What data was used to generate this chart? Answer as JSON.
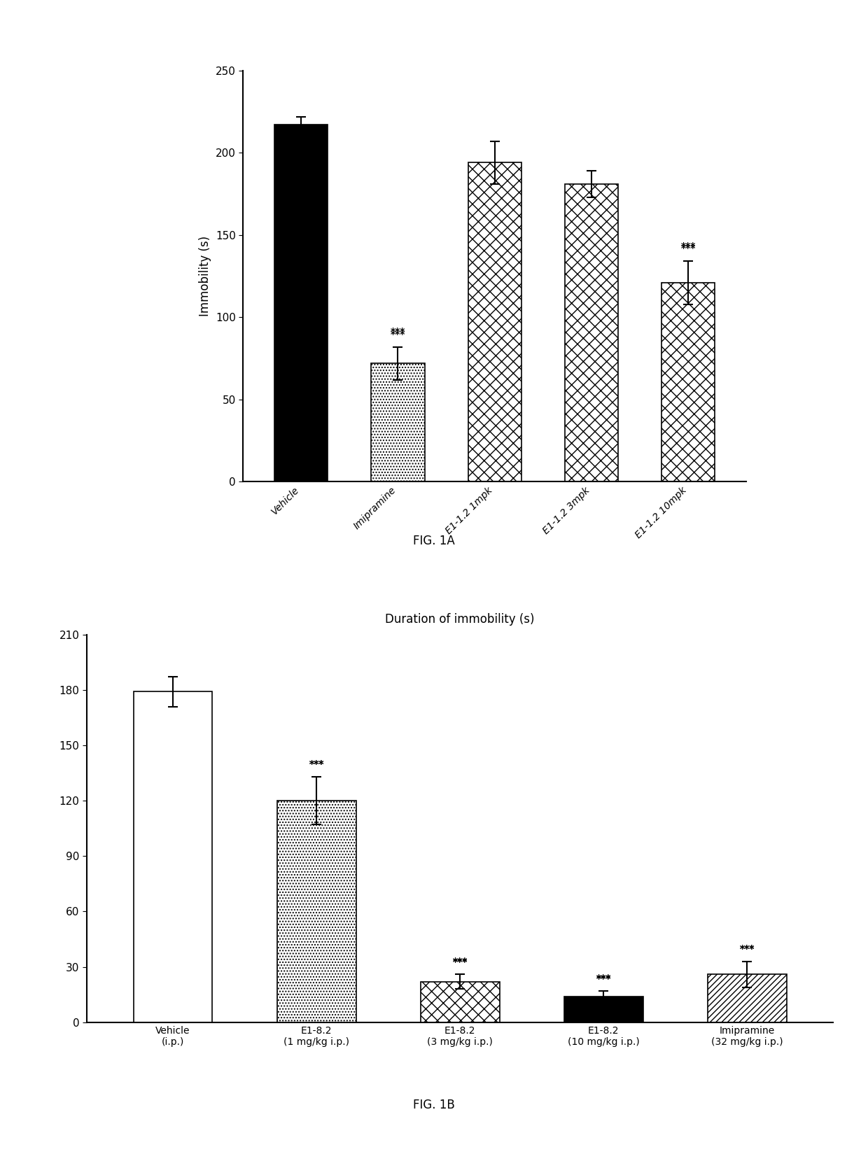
{
  "fig1a": {
    "ylabel": "Immobility (s)",
    "ylim": [
      0,
      250
    ],
    "yticks": [
      0,
      50,
      100,
      150,
      200,
      250
    ],
    "categories": [
      "Vehicle",
      "Imipramine",
      "E1-1.2 1mpk",
      "E1-1.2 3mpk",
      "E1-1.2 10mpk"
    ],
    "values": [
      217,
      72,
      194,
      181,
      121
    ],
    "errors": [
      5,
      10,
      13,
      8,
      13
    ],
    "sig": [
      false,
      true,
      false,
      false,
      true
    ],
    "bar_styles": [
      "solid_black",
      "dots",
      "crosshatch",
      "crosshatch",
      "crosshatch"
    ]
  },
  "fig1b": {
    "title": "Duration of immobility (s)",
    "ylim": [
      0,
      210
    ],
    "yticks": [
      0,
      30,
      60,
      90,
      120,
      150,
      180,
      210
    ],
    "categories": [
      "Vehicle\n(i.p.)",
      "E1-8.2\n(1 mg/kg i.p.)",
      "E1-8.2\n(3 mg/kg i.p.)",
      "E1-8.2\n(10 mg/kg i.p.)",
      "Imipramine\n(32 mg/kg i.p.)"
    ],
    "values": [
      179,
      120,
      22,
      14,
      26
    ],
    "errors": [
      8,
      13,
      4,
      3,
      7
    ],
    "sig": [
      false,
      true,
      true,
      true,
      true
    ],
    "bar_styles": [
      "white",
      "dots",
      "crosshatch",
      "solid_black",
      "diagonal"
    ]
  },
  "fig1a_label": "FIG. 1A",
  "fig1b_label": "FIG. 1B"
}
